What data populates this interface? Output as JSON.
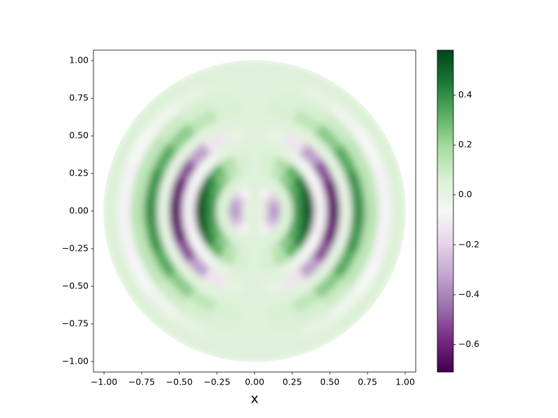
{
  "chart_data": {
    "type": "polar-heatmap",
    "xlabel": "x",
    "r": [
      0.05,
      0.13,
      0.22,
      0.3,
      0.36,
      0.44,
      0.53,
      0.61,
      0.69,
      0.78,
      0.87,
      0.96
    ],
    "theta": [
      0,
      15,
      30,
      45,
      60,
      75,
      90,
      105,
      120,
      135,
      150,
      165,
      180,
      195,
      210,
      225,
      240,
      255,
      270,
      285,
      300,
      315,
      330,
      345
    ],
    "values": [
      [
        0,
        0,
        0.01,
        0.02,
        0.03,
        0.04,
        0.04,
        0.04,
        0.03,
        0.02,
        0.01,
        0,
        0,
        0,
        0.01,
        0.02,
        0.03,
        0.04,
        0.04,
        0.04,
        0.03,
        0.02,
        0.01,
        0
      ],
      [
        -0.35,
        -0.33,
        -0.27,
        -0.17,
        -0.06,
        0.02,
        0.04,
        0.02,
        -0.06,
        -0.17,
        -0.27,
        -0.33,
        -0.35,
        -0.33,
        -0.27,
        -0.17,
        -0.06,
        0.02,
        0.04,
        0.02,
        -0.06,
        -0.17,
        -0.27,
        -0.33
      ],
      [
        0.05,
        0.05,
        0.05,
        0.05,
        0.04,
        0.04,
        0.04,
        0.04,
        0.04,
        0.05,
        0.05,
        0.05,
        0.05,
        0.05,
        0.05,
        0.05,
        0.04,
        0.04,
        0.04,
        0.04,
        0.04,
        0.05,
        0.05,
        0.05
      ],
      [
        0.4,
        0.38,
        0.33,
        0.24,
        0.13,
        0.06,
        0.04,
        0.06,
        0.13,
        0.24,
        0.33,
        0.38,
        0.4,
        0.38,
        0.33,
        0.24,
        0.13,
        0.06,
        0.04,
        0.06,
        0.13,
        0.24,
        0.33,
        0.38
      ],
      [
        0.55,
        0.52,
        0.45,
        0.32,
        0.17,
        0.07,
        0.04,
        0.07,
        0.17,
        0.32,
        0.45,
        0.52,
        0.55,
        0.52,
        0.45,
        0.32,
        0.17,
        0.07,
        0.04,
        0.07,
        0.17,
        0.32,
        0.45,
        0.52
      ],
      [
        -0.1,
        -0.09,
        -0.07,
        -0.04,
        0.01,
        0.03,
        0.04,
        0.03,
        0.01,
        -0.04,
        -0.07,
        -0.09,
        -0.1,
        -0.09,
        -0.07,
        -0.04,
        0.01,
        0.03,
        0.04,
        0.03,
        0.01,
        -0.04,
        -0.07,
        -0.09
      ],
      [
        -0.65,
        -0.62,
        -0.51,
        -0.34,
        -0.13,
        0.01,
        0.04,
        0.01,
        -0.13,
        -0.34,
        -0.51,
        -0.62,
        -0.65,
        -0.62,
        -0.51,
        -0.34,
        -0.13,
        0.01,
        0.04,
        0.01,
        -0.13,
        -0.34,
        -0.51,
        -0.62
      ],
      [
        0,
        0,
        0.01,
        0.02,
        0.03,
        0.04,
        0.04,
        0.04,
        0.03,
        0.02,
        0.01,
        0,
        0,
        0,
        0.01,
        0.02,
        0.03,
        0.04,
        0.04,
        0.04,
        0.03,
        0.02,
        0.01,
        0
      ],
      [
        0.4,
        0.38,
        0.33,
        0.24,
        0.13,
        0.06,
        0.04,
        0.06,
        0.13,
        0.24,
        0.33,
        0.38,
        0.4,
        0.38,
        0.33,
        0.24,
        0.13,
        0.06,
        0.04,
        0.06,
        0.13,
        0.24,
        0.33,
        0.38
      ],
      [
        0.15,
        0.14,
        0.13,
        0.1,
        0.07,
        0.05,
        0.04,
        0.05,
        0.07,
        0.1,
        0.13,
        0.14,
        0.15,
        0.14,
        0.13,
        0.1,
        0.07,
        0.05,
        0.04,
        0.05,
        0.07,
        0.1,
        0.13,
        0.14
      ],
      [
        -0.08,
        -0.08,
        -0.06,
        -0.03,
        0.01,
        0.03,
        0.04,
        0.03,
        0.01,
        -0.03,
        -0.06,
        -0.08,
        -0.08,
        -0.08,
        -0.06,
        -0.03,
        0.01,
        0.03,
        0.04,
        0.03,
        0.01,
        -0.03,
        -0.06,
        -0.08
      ],
      [
        0.05,
        0.05,
        0.05,
        0.05,
        0.04,
        0.04,
        0.04,
        0.04,
        0.04,
        0.05,
        0.05,
        0.05,
        0.05,
        0.05,
        0.05,
        0.05,
        0.04,
        0.04,
        0.04,
        0.04,
        0.04,
        0.05,
        0.05,
        0.05
      ]
    ],
    "xlim": [
      -1.07,
      1.07
    ],
    "ylim": [
      -1.07,
      1.07
    ],
    "xticks": [
      {
        "value": -1,
        "label": "−1.00"
      },
      {
        "value": -0.75,
        "label": "−0.75"
      },
      {
        "value": -0.5,
        "label": "−0.50"
      },
      {
        "value": -0.25,
        "label": "−0.25"
      },
      {
        "value": 0,
        "label": "0.00"
      },
      {
        "value": 0.25,
        "label": "0.25"
      },
      {
        "value": 0.5,
        "label": "0.50"
      },
      {
        "value": 0.75,
        "label": "0.75"
      },
      {
        "value": 1,
        "label": "1.00"
      }
    ],
    "yticks": [
      {
        "value": -1,
        "label": "−1.00"
      },
      {
        "value": -0.75,
        "label": "−0.75"
      },
      {
        "value": -0.5,
        "label": "−0.50"
      },
      {
        "value": -0.25,
        "label": "−0.25"
      },
      {
        "value": 0,
        "label": "0.00"
      },
      {
        "value": 0.25,
        "label": "0.25"
      },
      {
        "value": 0.5,
        "label": "0.50"
      },
      {
        "value": 0.75,
        "label": "0.75"
      },
      {
        "value": 1,
        "label": "1.00"
      }
    ],
    "clim": [
      -0.71,
      0.58
    ],
    "cticks": [
      {
        "value": -0.6,
        "label": "−0.6"
      },
      {
        "value": -0.4,
        "label": "−0.4"
      },
      {
        "value": -0.2,
        "label": "−0.2"
      },
      {
        "value": 0,
        "label": "0.0"
      },
      {
        "value": 0.2,
        "label": "0.2"
      },
      {
        "value": 0.4,
        "label": "0.4"
      }
    ],
    "colormap": [
      "#40004b",
      "#762a83",
      "#9970ab",
      "#c2a5cf",
      "#e7d4e8",
      "#f7f7f7",
      "#d9f0d3",
      "#a6dba0",
      "#5aae61",
      "#1b7837",
      "#00441b"
    ]
  }
}
